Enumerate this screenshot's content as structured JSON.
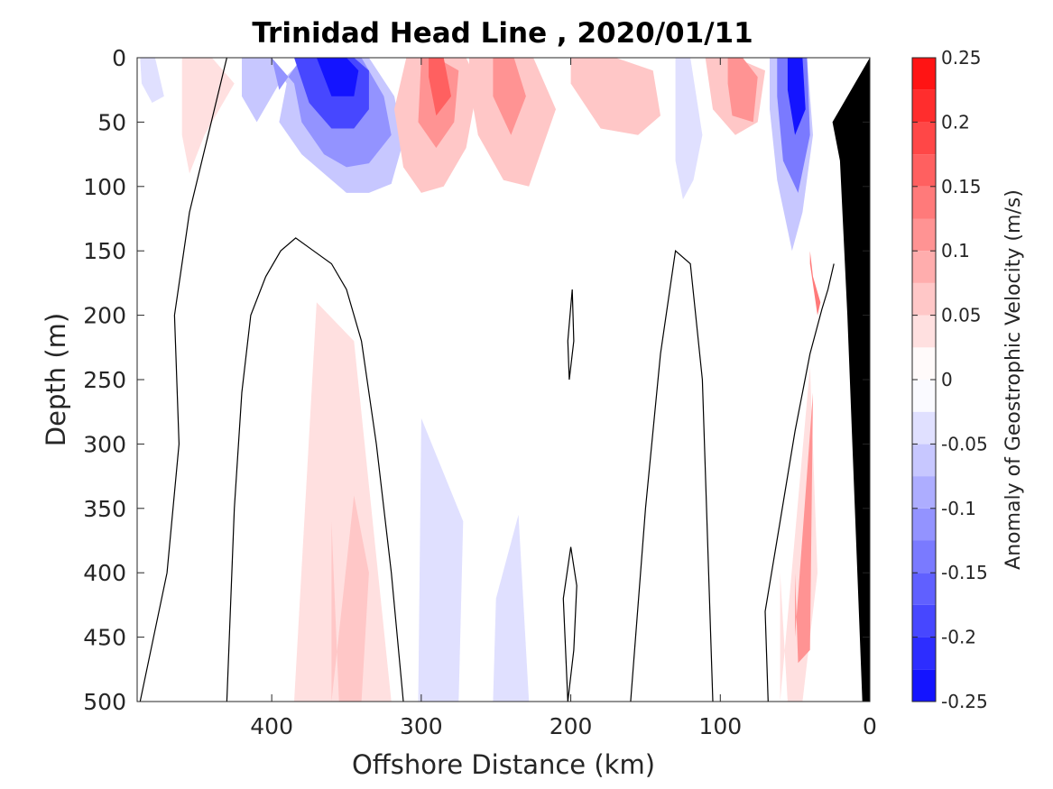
{
  "chart_data": {
    "type": "heatmap",
    "title": "Trinidad Head Line , 2020/01/11",
    "xlabel": "Offshore Distance (km)",
    "ylabel": "Depth (m)",
    "xlim": [
      490,
      0
    ],
    "ylim": [
      0,
      500
    ],
    "x_ticks": [
      400,
      300,
      200,
      100,
      0
    ],
    "x_tick_labels": [
      "400",
      "300",
      "200",
      "100",
      "0"
    ],
    "y_ticks": [
      0,
      50,
      100,
      150,
      200,
      250,
      300,
      350,
      400,
      450,
      500
    ],
    "y_tick_labels": [
      "0",
      "50",
      "100",
      "150",
      "200",
      "250",
      "300",
      "350",
      "400",
      "450",
      "500"
    ],
    "colorbar": {
      "label": "Anomaly of Geostrophic Velocity (m/s)",
      "limits": [
        -0.25,
        0.25
      ],
      "levels": [
        -0.25,
        -0.225,
        -0.2,
        -0.175,
        -0.15,
        -0.125,
        -0.1,
        -0.075,
        -0.05,
        -0.025,
        0,
        0.025,
        0.05,
        0.075,
        0.1,
        0.125,
        0.15,
        0.175,
        0.2,
        0.225,
        0.25
      ],
      "ticks": [
        0.25,
        0.2,
        0.15,
        0.1,
        0.05,
        0,
        -0.05,
        -0.1,
        -0.15,
        -0.2,
        -0.25
      ],
      "tick_labels": [
        "0.25",
        "0.2",
        "0.15",
        "0.1",
        "0.05",
        "0",
        "-0.05",
        "-0.1",
        "-0.15",
        "-0.2",
        "-0.25"
      ],
      "colors": {
        "negative": [
          "#fafaff",
          "#e0e0ff",
          "#c7c7ff",
          "#adadff",
          "#9393ff",
          "#7a7aff",
          "#6060ff",
          "#4747ff",
          "#2d2dff",
          "#1414ff"
        ],
        "positive": [
          "#fffafa",
          "#ffe0e0",
          "#ffc7c7",
          "#ffadad",
          "#ff9393",
          "#ff7a7a",
          "#ff6060",
          "#ff4747",
          "#ff2d2d",
          "#ff1414"
        ]
      }
    },
    "series": [
      {
        "sign": "negative",
        "level": 0.03,
        "x": [
          488,
          478,
          472,
          480,
          487
        ],
        "y": [
          0,
          0,
          30,
          35,
          20
        ]
      },
      {
        "sign": "negative",
        "level": 0.05,
        "x": [
          420,
          400,
          390,
          395,
          380,
          365,
          350,
          335,
          320,
          312,
          318,
          335,
          355,
          378,
          395,
          410,
          420
        ],
        "y": [
          0,
          0,
          20,
          50,
          75,
          90,
          105,
          105,
          98,
          65,
          30,
          0,
          0,
          0,
          20,
          50,
          30
        ]
      },
      {
        "sign": "negative",
        "level": 0.1,
        "x": [
          400,
          385,
          380,
          365,
          350,
          335,
          320,
          325,
          340,
          360,
          380,
          395,
          400
        ],
        "y": [
          0,
          20,
          50,
          75,
          85,
          82,
          60,
          30,
          0,
          0,
          0,
          25,
          0
        ]
      },
      {
        "sign": "negative",
        "level": 0.17,
        "x": [
          385,
          375,
          360,
          345,
          335,
          335,
          345,
          360,
          375,
          385
        ],
        "y": [
          0,
          35,
          55,
          55,
          40,
          10,
          0,
          0,
          0,
          0
        ]
      },
      {
        "sign": "negative",
        "level": 0.22,
        "x": [
          370,
          360,
          345,
          342,
          350,
          365,
          370
        ],
        "y": [
          0,
          30,
          30,
          10,
          0,
          0,
          0
        ]
      },
      {
        "sign": "negative",
        "level": 0.03,
        "x": [
          130,
          120,
          112,
          118,
          125,
          130
        ],
        "y": [
          0,
          0,
          60,
          95,
          110,
          80
        ]
      },
      {
        "sign": "negative",
        "level": 0.05,
        "x": [
          67,
          55,
          42,
          38,
          45,
          52,
          62,
          67
        ],
        "y": [
          0,
          0,
          0,
          60,
          120,
          150,
          95,
          40
        ]
      },
      {
        "sign": "negative",
        "level": 0.12,
        "x": [
          62,
          52,
          42,
          40,
          48,
          58,
          62
        ],
        "y": [
          0,
          0,
          0,
          60,
          105,
          80,
          30
        ]
      },
      {
        "sign": "negative",
        "level": 0.22,
        "x": [
          55,
          45,
          43,
          50,
          55
        ],
        "y": [
          0,
          0,
          40,
          60,
          25
        ]
      },
      {
        "sign": "negative",
        "level": 0.03,
        "x": [
          302,
          290,
          275,
          272,
          300
        ],
        "y": [
          500,
          500,
          500,
          360,
          280
        ]
      },
      {
        "sign": "negative",
        "level": 0.03,
        "x": [
          252,
          238,
          228,
          235,
          250
        ],
        "y": [
          500,
          500,
          500,
          355,
          420
        ]
      },
      {
        "sign": "positive",
        "level": 0.03,
        "x": [
          460,
          440,
          425,
          445,
          455,
          460
        ],
        "y": [
          0,
          0,
          20,
          60,
          90,
          60
        ]
      },
      {
        "sign": "positive",
        "level": 0.05,
        "x": [
          310,
          292,
          270,
          262,
          270,
          285,
          300,
          312,
          318,
          310
        ],
        "y": [
          0,
          0,
          0,
          20,
          70,
          100,
          105,
          85,
          40,
          0
        ]
      },
      {
        "sign": "positive",
        "level": 0.1,
        "x": [
          300,
          290,
          275,
          278,
          290,
          302,
          300
        ],
        "y": [
          0,
          0,
          10,
          50,
          70,
          50,
          0
        ]
      },
      {
        "sign": "positive",
        "level": 0.15,
        "x": [
          295,
          285,
          280,
          290,
          295
        ],
        "y": [
          0,
          0,
          30,
          45,
          15
        ]
      },
      {
        "sign": "positive",
        "level": 0.05,
        "x": [
          268,
          250,
          225,
          210,
          228,
          245,
          262,
          268
        ],
        "y": [
          0,
          0,
          0,
          40,
          100,
          95,
          60,
          20
        ]
      },
      {
        "sign": "positive",
        "level": 0.1,
        "x": [
          252,
          238,
          230,
          240,
          252
        ],
        "y": [
          0,
          0,
          30,
          60,
          30
        ]
      },
      {
        "sign": "positive",
        "level": 0.05,
        "x": [
          200,
          170,
          145,
          140,
          155,
          180,
          200
        ],
        "y": [
          0,
          0,
          10,
          45,
          60,
          55,
          20
        ]
      },
      {
        "sign": "positive",
        "level": 0.05,
        "x": [
          110,
          90,
          70,
          75,
          90,
          105,
          110
        ],
        "y": [
          0,
          0,
          10,
          50,
          60,
          40,
          0
        ]
      },
      {
        "sign": "positive",
        "level": 0.1,
        "x": [
          95,
          85,
          75,
          78,
          92,
          95
        ],
        "y": [
          0,
          0,
          15,
          50,
          45,
          20
        ]
      },
      {
        "sign": "positive",
        "level": 0.03,
        "x": [
          385,
          370,
          345,
          320,
          335,
          360,
          385
        ],
        "y": [
          500,
          190,
          220,
          500,
          500,
          500,
          500
        ]
      },
      {
        "sign": "positive",
        "level": 0.05,
        "x": [
          360,
          345,
          335,
          340,
          355,
          360
        ],
        "y": [
          500,
          340,
          400,
          500,
          500,
          360
        ]
      },
      {
        "sign": "positive",
        "level": 0.03,
        "x": [
          60,
          40,
          35,
          45,
          55,
          60
        ],
        "y": [
          500,
          240,
          400,
          500,
          500,
          400
        ]
      },
      {
        "sign": "positive",
        "level": 0.1,
        "x": [
          50,
          38,
          40,
          48,
          50
        ],
        "y": [
          450,
          260,
          460,
          470,
          400
        ]
      },
      {
        "sign": "positive",
        "level": 0.12,
        "x": [
          40,
          35,
          33,
          38,
          40
        ],
        "y": [
          160,
          200,
          190,
          170,
          150
        ]
      }
    ],
    "zero_contours": [
      {
        "x": [
          430,
          455,
          460,
          465,
          462,
          470,
          488
        ],
        "y": [
          0,
          120,
          160,
          200,
          300,
          400,
          500
        ]
      },
      {
        "x": [
          312,
          320,
          330,
          340,
          350,
          360,
          372,
          384,
          394,
          404,
          414,
          420,
          425,
          430
        ],
        "y": [
          500,
          400,
          300,
          220,
          180,
          160,
          150,
          140,
          150,
          170,
          200,
          260,
          350,
          500
        ]
      },
      {
        "x": [
          202,
          205,
          200,
          196,
          198,
          202
        ],
        "y": [
          500,
          420,
          380,
          410,
          460,
          500
        ]
      },
      {
        "x": [
          199,
          202,
          201,
          198,
          199
        ],
        "y": [
          180,
          220,
          250,
          220,
          180
        ]
      },
      {
        "x": [
          160,
          150,
          140,
          130,
          120,
          112,
          105
        ],
        "y": [
          500,
          350,
          230,
          150,
          160,
          250,
          500
        ]
      },
      {
        "x": [
          68,
          70,
          60,
          50,
          40,
          32,
          28,
          24
        ],
        "y": [
          500,
          430,
          360,
          290,
          230,
          195,
          180,
          160
        ]
      }
    ],
    "land": {
      "x": [
        0,
        0,
        5,
        10,
        15,
        20,
        25
      ],
      "y": [
        0,
        500,
        500,
        350,
        200,
        80,
        50
      ]
    },
    "grid": false,
    "legend": "none"
  }
}
